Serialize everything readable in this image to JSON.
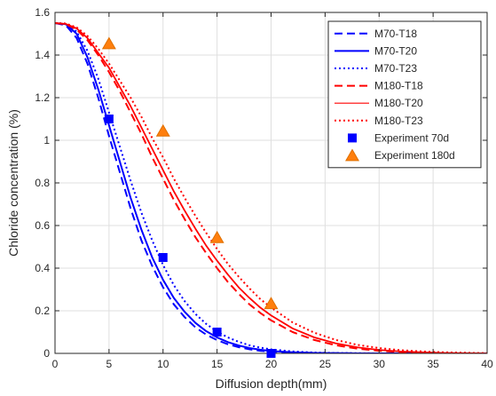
{
  "chart_data": {
    "type": "line",
    "title": "",
    "xlabel": "Diffusion depth(mm)",
    "ylabel": "Chloride concentration (%)",
    "xlim": [
      0,
      40
    ],
    "ylim": [
      0,
      1.6
    ],
    "xticks": [
      0,
      5,
      10,
      15,
      20,
      25,
      30,
      35,
      40
    ],
    "xtick_labels": [
      "0",
      "5",
      "10",
      "15",
      "20",
      "25",
      "30",
      "35",
      "40"
    ],
    "yticks": [
      0,
      0.2,
      0.4,
      0.6,
      0.8,
      1.0,
      1.2,
      1.4,
      1.6
    ],
    "ytick_labels": [
      "0",
      "0.2",
      "0.4",
      "0.6",
      "0.8",
      "1",
      "1.2",
      "1.4",
      "1.6"
    ],
    "grid": true,
    "legend_position": "top-right",
    "x": [
      0,
      1,
      2,
      3,
      4,
      5,
      6,
      7,
      8,
      9,
      10,
      11,
      12,
      13,
      14,
      15,
      16,
      17,
      18,
      19,
      20,
      22,
      24,
      26,
      28,
      30,
      32,
      34,
      36,
      38,
      40
    ],
    "series": [
      {
        "name": "M70-T18",
        "color": "#0000ff",
        "style": "dashed",
        "width": 2,
        "values": [
          1.55,
          1.54,
          1.48,
          1.36,
          1.2,
          1.02,
          0.85,
          0.68,
          0.53,
          0.41,
          0.31,
          0.23,
          0.17,
          0.122,
          0.088,
          0.062,
          0.043,
          0.029,
          0.019,
          0.012,
          0.008,
          0.004,
          0.002,
          0.001,
          0,
          0,
          0,
          0,
          0,
          0,
          0
        ]
      },
      {
        "name": "M70-T20",
        "color": "#0000ff",
        "style": "solid",
        "width": 2,
        "values": [
          1.55,
          1.545,
          1.5,
          1.39,
          1.24,
          1.07,
          0.9,
          0.73,
          0.58,
          0.45,
          0.345,
          0.26,
          0.195,
          0.143,
          0.104,
          0.075,
          0.053,
          0.037,
          0.025,
          0.017,
          0.011,
          0.005,
          0.002,
          0.001,
          0,
          0,
          0,
          0,
          0,
          0,
          0
        ]
      },
      {
        "name": "M70-T23",
        "color": "#0000ff",
        "style": "dotted",
        "width": 2,
        "values": [
          1.55,
          1.548,
          1.51,
          1.42,
          1.29,
          1.13,
          0.97,
          0.81,
          0.66,
          0.53,
          0.415,
          0.32,
          0.245,
          0.185,
          0.138,
          0.102,
          0.075,
          0.054,
          0.038,
          0.027,
          0.019,
          0.009,
          0.004,
          0.002,
          0.001,
          0,
          0,
          0,
          0,
          0,
          0
        ]
      },
      {
        "name": "M180-T18",
        "color": "#ff0000",
        "style": "dashed",
        "width": 2,
        "values": [
          1.55,
          1.545,
          1.52,
          1.47,
          1.4,
          1.32,
          1.23,
          1.13,
          1.03,
          0.92,
          0.82,
          0.72,
          0.63,
          0.545,
          0.47,
          0.4,
          0.335,
          0.28,
          0.23,
          0.19,
          0.155,
          0.1,
          0.063,
          0.038,
          0.022,
          0.012,
          0.006,
          0.003,
          0.001,
          0,
          0
        ]
      },
      {
        "name": "M180-T20",
        "color": "#ff0000",
        "style": "solid",
        "width": 2,
        "values": [
          1.55,
          1.546,
          1.525,
          1.48,
          1.41,
          1.34,
          1.25,
          1.16,
          1.06,
          0.96,
          0.86,
          0.76,
          0.67,
          0.585,
          0.505,
          0.435,
          0.37,
          0.31,
          0.26,
          0.215,
          0.178,
          0.117,
          0.075,
          0.047,
          0.028,
          0.016,
          0.009,
          0.005,
          0.002,
          0.001,
          0
        ]
      },
      {
        "name": "M180-T23",
        "color": "#ff0000",
        "style": "dotted",
        "width": 2,
        "values": [
          1.55,
          1.548,
          1.53,
          1.49,
          1.43,
          1.36,
          1.28,
          1.2,
          1.11,
          1.01,
          0.92,
          0.82,
          0.73,
          0.645,
          0.565,
          0.49,
          0.42,
          0.36,
          0.305,
          0.255,
          0.215,
          0.145,
          0.097,
          0.063,
          0.04,
          0.025,
          0.015,
          0.009,
          0.005,
          0.003,
          0.001
        ]
      }
    ],
    "scatter_series": [
      {
        "name": "Experiment 70d",
        "marker": "square",
        "color": "#0000ff",
        "points": [
          [
            5,
            1.1
          ],
          [
            10,
            0.45
          ],
          [
            15,
            0.1
          ],
          [
            20,
            0.0
          ]
        ]
      },
      {
        "name": "Experiment 180d",
        "marker": "triangle",
        "color": "#ff7f0e",
        "edge_color": "#e07000",
        "points": [
          [
            5,
            1.45
          ],
          [
            10,
            1.04
          ],
          [
            15,
            0.54
          ],
          [
            20,
            0.23
          ]
        ]
      }
    ]
  }
}
